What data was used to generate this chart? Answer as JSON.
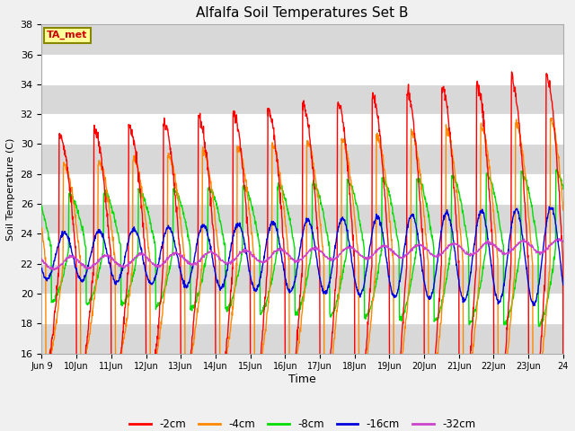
{
  "title": "Alfalfa Soil Temperatures Set B",
  "ylabel": "Soil Temperature (C)",
  "xlabel": "Time",
  "ylim": [
    16,
    38
  ],
  "yticks": [
    16,
    18,
    20,
    22,
    24,
    26,
    28,
    30,
    32,
    34,
    36,
    38
  ],
  "annotation": "TA_met",
  "legend_entries": [
    "-2cm",
    "-4cm",
    "-8cm",
    "-16cm",
    "-32cm"
  ],
  "line_colors": [
    "#ff0000",
    "#ff8800",
    "#00dd00",
    "#0000dd",
    "#cc44cc"
  ],
  "num_points": 1500,
  "total_days": 15
}
